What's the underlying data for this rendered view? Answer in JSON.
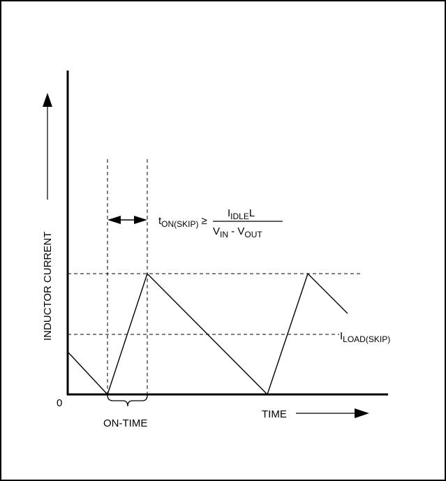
{
  "diagram": {
    "y_axis_label": "INDUCTOR CURRENT",
    "x_axis_label": "TIME",
    "origin_label": "0",
    "on_time_label": "ON-TIME",
    "i_load_skip": {
      "main": "I",
      "sub": "LOAD(SKIP)"
    },
    "formula": {
      "lhs_main": "t",
      "lhs_sub": "ON(SKIP)",
      "relation": "≥",
      "numerator_i": "I",
      "numerator_sub": "IDLE",
      "numerator_l": "L",
      "denominator_vin": "V",
      "denominator_vin_sub": "IN",
      "denominator_minus": " - ",
      "denominator_vout": "V",
      "denominator_vout_sub": "OUT"
    }
  },
  "colors": {
    "ink": "#000000",
    "background": "#ffffff"
  }
}
